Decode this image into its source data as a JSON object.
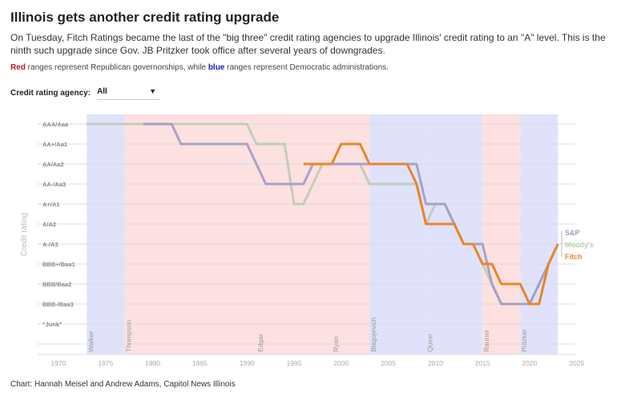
{
  "title": "Illinois gets another credit rating upgrade",
  "subtitle": "On Tuesday, Fitch Ratings became the last of the \"big three\" credit rating agencies to upgrade Illinois' credit rating to an \"A\" level. This is the ninth such upgrade since Gov. JB Pritzker took office after several years of downgrades.",
  "note": {
    "red": "Red",
    "mid": " ranges represent Republican governorships, while ",
    "blue": "blue",
    "end": " ranges represent Democratic administrations."
  },
  "filter": {
    "label": "Credit rating agency:",
    "value": "All",
    "icon": "caret-down-icon"
  },
  "credit": "Chart: Hannah Meisel and Andrew Adams, Capitol News Illinois",
  "colors": {
    "republican": "#fde0e0",
    "democrat": "#e0e2fb",
    "sp": "#9e9cc4",
    "moodys": "#bccbb8",
    "fitch": "#e8862a"
  },
  "chart_data": {
    "type": "line",
    "ylabel": "Credit rating",
    "xlim": [
      1968,
      2025
    ],
    "xticks": [
      1970,
      1975,
      1980,
      1985,
      1990,
      1995,
      2000,
      2005,
      2010,
      2015,
      2020,
      2025
    ],
    "yticks": [
      "AAA/Aaa",
      "AA+/Aa1",
      "AA/Aa2",
      "AA-/Aa3",
      "A+/A1",
      "A/A2",
      "A-/A3",
      "BBB+/Baa1",
      "BBB/Baa2",
      "BBB-/Baa3",
      "\"Junk\""
    ],
    "governors": [
      {
        "name": "Walker",
        "party": "D",
        "start": 1973,
        "end": 1977
      },
      {
        "name": "Thompson",
        "party": "R",
        "start": 1977,
        "end": 1991
      },
      {
        "name": "Edgar",
        "party": "R",
        "start": 1991,
        "end": 1999
      },
      {
        "name": "Ryan",
        "party": "R",
        "start": 1999,
        "end": 2003
      },
      {
        "name": "Blagojevich",
        "party": "D",
        "start": 2003,
        "end": 2009
      },
      {
        "name": "Quinn",
        "party": "D",
        "start": 2009,
        "end": 2015
      },
      {
        "name": "Rauner",
        "party": "R",
        "start": 2015,
        "end": 2019
      },
      {
        "name": "Pritzker",
        "party": "D",
        "start": 2019,
        "end": 2023
      }
    ],
    "series": [
      {
        "name": "Moody's",
        "points": [
          [
            1973,
            0
          ],
          [
            1990,
            0
          ],
          [
            1991,
            1
          ],
          [
            1994,
            1
          ],
          [
            1995,
            4
          ],
          [
            1996,
            4
          ],
          [
            1998,
            2
          ],
          [
            2002,
            2
          ],
          [
            2003,
            3
          ],
          [
            2008,
            3
          ],
          [
            2009,
            5
          ],
          [
            2010,
            4
          ],
          [
            2011,
            4
          ],
          [
            2012,
            5
          ],
          [
            2013,
            6
          ],
          [
            2014,
            6
          ],
          [
            2015,
            7
          ],
          [
            2016,
            8
          ],
          [
            2017,
            9
          ],
          [
            2020,
            9
          ],
          [
            2021,
            8
          ],
          [
            2022,
            7
          ],
          [
            2023,
            6
          ]
        ]
      },
      {
        "name": "S&P",
        "points": [
          [
            1979,
            0
          ],
          [
            1982,
            0
          ],
          [
            1983,
            1
          ],
          [
            1990,
            1
          ],
          [
            1992,
            3
          ],
          [
            1996,
            3
          ],
          [
            1997,
            2
          ],
          [
            2008,
            2
          ],
          [
            2009,
            4
          ],
          [
            2011,
            4
          ],
          [
            2012,
            5
          ],
          [
            2013,
            6
          ],
          [
            2015,
            6
          ],
          [
            2016,
            8
          ],
          [
            2017,
            9
          ],
          [
            2020,
            9
          ],
          [
            2022,
            7
          ],
          [
            2023,
            6
          ]
        ]
      },
      {
        "name": "Fitch",
        "points": [
          [
            1996,
            2
          ],
          [
            1999,
            2
          ],
          [
            2000,
            1
          ],
          [
            2002,
            1
          ],
          [
            2003,
            2
          ],
          [
            2007,
            2
          ],
          [
            2008,
            3
          ],
          [
            2009,
            5
          ],
          [
            2012,
            5
          ],
          [
            2013,
            6
          ],
          [
            2014,
            6
          ],
          [
            2015,
            7
          ],
          [
            2016,
            7
          ],
          [
            2017,
            8
          ],
          [
            2019,
            8
          ],
          [
            2020,
            9
          ],
          [
            2021,
            9
          ],
          [
            2022,
            7
          ],
          [
            2023,
            6
          ]
        ]
      }
    ]
  }
}
